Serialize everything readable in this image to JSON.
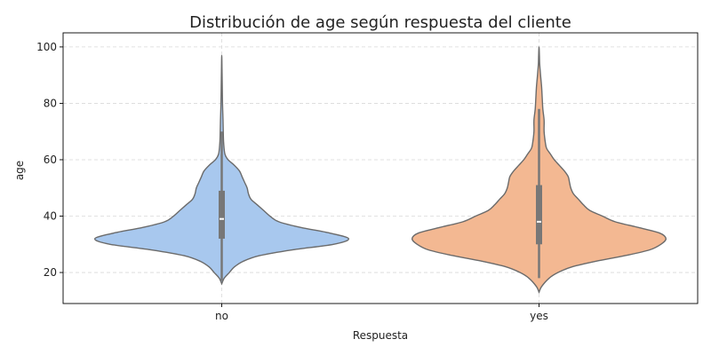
{
  "chart_data": {
    "type": "violin",
    "title": "Distribución de age según respuesta del cliente",
    "xlabel": "Respuesta",
    "ylabel": "age",
    "categories": [
      "no",
      "yes"
    ],
    "ylim": [
      9,
      105
    ],
    "yticks": [
      20,
      40,
      60,
      80,
      100
    ],
    "grid": true,
    "colors": {
      "no": "#a8c8ee",
      "yes": "#f3b892",
      "box": "#777777",
      "median": "#ffffff",
      "outline": "#6b6b6b"
    },
    "series": [
      {
        "category": "no",
        "min": 17,
        "q1": 32,
        "median": 39,
        "q3": 49,
        "max": 70,
        "density": [
          [
            16,
            0.0
          ],
          [
            18,
            0.02
          ],
          [
            20,
            0.06
          ],
          [
            22,
            0.1
          ],
          [
            24,
            0.17
          ],
          [
            26,
            0.3
          ],
          [
            28,
            0.55
          ],
          [
            30,
            0.88
          ],
          [
            32,
            1.0
          ],
          [
            34,
            0.85
          ],
          [
            36,
            0.62
          ],
          [
            38,
            0.45
          ],
          [
            40,
            0.38
          ],
          [
            42,
            0.33
          ],
          [
            44,
            0.28
          ],
          [
            46,
            0.23
          ],
          [
            48,
            0.21
          ],
          [
            50,
            0.2
          ],
          [
            52,
            0.18
          ],
          [
            54,
            0.16
          ],
          [
            56,
            0.14
          ],
          [
            58,
            0.1
          ],
          [
            60,
            0.05
          ],
          [
            62,
            0.025
          ],
          [
            66,
            0.015
          ],
          [
            70,
            0.012
          ],
          [
            74,
            0.01
          ],
          [
            80,
            0.006
          ],
          [
            86,
            0.004
          ],
          [
            92,
            0.002
          ],
          [
            97,
            0.0
          ]
        ]
      },
      {
        "category": "yes",
        "min": 18,
        "q1": 30,
        "median": 38,
        "q3": 51,
        "max": 78,
        "density": [
          [
            13,
            0.0
          ],
          [
            15,
            0.02
          ],
          [
            18,
            0.08
          ],
          [
            20,
            0.15
          ],
          [
            22,
            0.26
          ],
          [
            24,
            0.45
          ],
          [
            26,
            0.68
          ],
          [
            28,
            0.87
          ],
          [
            30,
            0.96
          ],
          [
            32,
            1.0
          ],
          [
            34,
            0.95
          ],
          [
            36,
            0.78
          ],
          [
            38,
            0.6
          ],
          [
            40,
            0.5
          ],
          [
            42,
            0.4
          ],
          [
            44,
            0.35
          ],
          [
            46,
            0.31
          ],
          [
            48,
            0.27
          ],
          [
            50,
            0.25
          ],
          [
            52,
            0.24
          ],
          [
            54,
            0.23
          ],
          [
            56,
            0.2
          ],
          [
            58,
            0.16
          ],
          [
            60,
            0.12
          ],
          [
            62,
            0.09
          ],
          [
            64,
            0.06
          ],
          [
            66,
            0.05
          ],
          [
            70,
            0.04
          ],
          [
            74,
            0.04
          ],
          [
            78,
            0.03
          ],
          [
            82,
            0.025
          ],
          [
            86,
            0.02
          ],
          [
            90,
            0.012
          ],
          [
            94,
            0.005
          ],
          [
            97,
            0.003
          ],
          [
            100,
            0.0
          ]
        ]
      }
    ]
  }
}
